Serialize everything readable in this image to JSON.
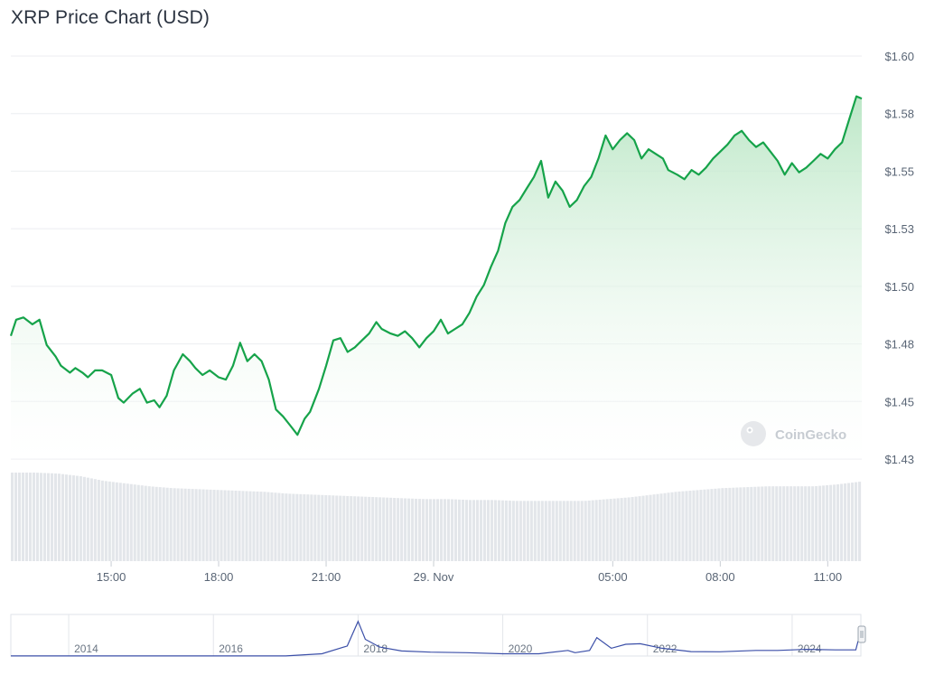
{
  "title": "XRP Price Chart (USD)",
  "watermark": "CoinGecko",
  "colors": {
    "line": "#16a34a",
    "area_top": "#bfe8c9",
    "volume": "#e3e6ea",
    "grid": "#eceef1",
    "navigator_line": "#3b4fa8"
  },
  "chart_data": {
    "type": "area",
    "y_ticks": [
      "$1.43",
      "$1.45",
      "$1.48",
      "$1.50",
      "$1.53",
      "$1.55",
      "$1.58",
      "$1.60"
    ],
    "x_ticks": [
      "15:00",
      "18:00",
      "21:00",
      "29. Nov",
      "05:00",
      "08:00",
      "11:00"
    ],
    "x_range_hours": [
      12.2,
      35.95
    ],
    "ylim": [
      1.4275,
      1.6025
    ],
    "grid": "horizontal",
    "price_series": {
      "name": "XRP",
      "x_hours": [
        12.2,
        12.35,
        12.55,
        12.8,
        13.0,
        13.2,
        13.45,
        13.6,
        13.85,
        14.0,
        14.2,
        14.35,
        14.55,
        14.75,
        15.0,
        15.2,
        15.35,
        15.6,
        15.8,
        16.0,
        16.2,
        16.35,
        16.55,
        16.75,
        17.0,
        17.2,
        17.35,
        17.55,
        17.75,
        18.0,
        18.2,
        18.4,
        18.6,
        18.8,
        19.0,
        19.2,
        19.4,
        19.6,
        19.8,
        20.0,
        20.2,
        20.4,
        20.55,
        20.8,
        21.0,
        21.2,
        21.4,
        21.6,
        21.8,
        22.0,
        22.2,
        22.4,
        22.55,
        22.8,
        23.0,
        23.2,
        23.4,
        23.6,
        23.8,
        24.0,
        24.2,
        24.4,
        24.6,
        24.8,
        25.0,
        25.2,
        25.4,
        25.6,
        25.8,
        26.0,
        26.2,
        26.4,
        26.6,
        26.8,
        27.0,
        27.2,
        27.4,
        27.6,
        27.8,
        28.0,
        28.2,
        28.4,
        28.6,
        28.8,
        29.0,
        29.2,
        29.4,
        29.6,
        29.8,
        30.0,
        30.2,
        30.4,
        30.55,
        30.8,
        31.0,
        31.2,
        31.4,
        31.6,
        31.8,
        32.0,
        32.2,
        32.4,
        32.6,
        32.8,
        33.0,
        33.2,
        33.4,
        33.6,
        33.8,
        34.0,
        34.2,
        34.4,
        34.6,
        34.8,
        35.0,
        35.2,
        35.4,
        35.6,
        35.8,
        35.95
      ],
      "y_price": [
        1.481,
        1.488,
        1.489,
        1.486,
        1.488,
        1.477,
        1.472,
        1.468,
        1.465,
        1.467,
        1.465,
        1.463,
        1.466,
        1.466,
        1.464,
        1.454,
        1.452,
        1.456,
        1.458,
        1.452,
        1.453,
        1.45,
        1.455,
        1.466,
        1.473,
        1.47,
        1.467,
        1.464,
        1.466,
        1.463,
        1.462,
        1.468,
        1.478,
        1.47,
        1.473,
        1.47,
        1.462,
        1.449,
        1.446,
        1.442,
        1.438,
        1.445,
        1.448,
        1.458,
        1.468,
        1.479,
        1.48,
        1.474,
        1.476,
        1.479,
        1.482,
        1.487,
        1.484,
        1.482,
        1.481,
        1.483,
        1.48,
        1.476,
        1.48,
        1.483,
        1.488,
        1.482,
        1.484,
        1.486,
        1.491,
        1.498,
        1.503,
        1.511,
        1.518,
        1.53,
        1.537,
        1.54,
        1.545,
        1.55,
        1.557,
        1.541,
        1.548,
        1.544,
        1.537,
        1.54,
        1.546,
        1.55,
        1.558,
        1.568,
        1.562,
        1.566,
        1.569,
        1.566,
        1.558,
        1.562,
        1.56,
        1.558,
        1.553,
        1.551,
        1.549,
        1.553,
        1.551,
        1.554,
        1.558,
        1.561,
        1.564,
        1.568,
        1.57,
        1.566,
        1.563,
        1.565,
        1.561,
        1.557,
        1.551,
        1.556,
        1.552,
        1.554,
        1.557,
        1.56,
        1.558,
        1.562,
        1.565,
        1.575,
        1.585,
        1.584
      ]
    },
    "volume_series": {
      "name": "Volume",
      "relative_level": [
        0.97,
        0.97,
        0.96,
        0.93,
        0.88,
        0.85,
        0.82,
        0.8,
        0.79,
        0.78,
        0.77,
        0.76,
        0.74,
        0.73,
        0.72,
        0.71,
        0.7,
        0.69,
        0.68,
        0.68,
        0.67,
        0.67,
        0.66,
        0.66,
        0.66,
        0.66,
        0.68,
        0.7,
        0.73,
        0.76,
        0.78,
        0.8,
        0.81,
        0.82,
        0.82,
        0.82,
        0.84,
        0.87
      ],
      "ylim": [
        0,
        1
      ]
    },
    "navigator": {
      "years": [
        "2014",
        "2016",
        "2018",
        "2020",
        "2022",
        "2024"
      ],
      "x_years": [
        2013.2,
        2014,
        2015,
        2016,
        2017,
        2017.5,
        2017.85,
        2018.0,
        2018.1,
        2018.3,
        2018.6,
        2019,
        2019.5,
        2020,
        2020.5,
        2020.9,
        2021.0,
        2021.2,
        2021.3,
        2021.5,
        2021.7,
        2021.9,
        2022.2,
        2022.6,
        2023.0,
        2023.5,
        2023.8,
        2024.2,
        2024.6,
        2024.88,
        2024.92
      ],
      "y_price": [
        0.01,
        0.01,
        0.01,
        0.01,
        0.01,
        0.2,
        0.9,
        3.1,
        1.5,
        0.8,
        0.45,
        0.35,
        0.3,
        0.2,
        0.2,
        0.5,
        0.3,
        0.5,
        1.65,
        0.7,
        1.05,
        1.1,
        0.7,
        0.4,
        0.38,
        0.5,
        0.5,
        0.6,
        0.55,
        0.55,
        1.55
      ],
      "ylim": [
        0,
        3.4
      ],
      "xlim": [
        2013.2,
        2024.95
      ]
    }
  }
}
